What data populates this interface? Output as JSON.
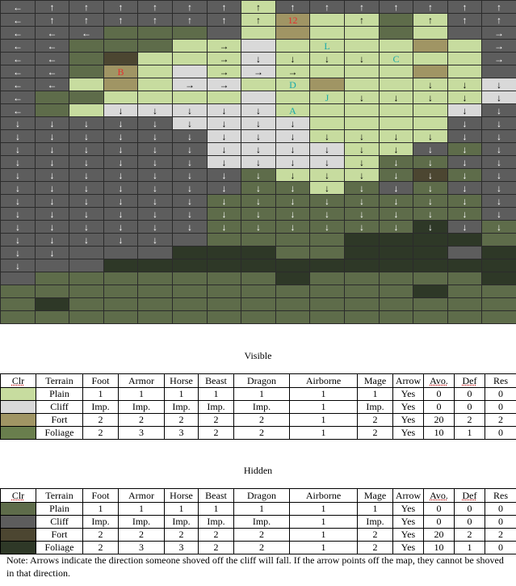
{
  "palette": {
    "P": "#c7dc9f",
    "C": "#d9d9d9",
    "F": "#a09564",
    "G": "#697e4d",
    "p": "#5e6c4a",
    "c": "#5d5d5d",
    "f": "#4c4631",
    "g": "#2e3827"
  },
  "label_colors": {
    "red": "#e53030",
    "cyan": "#18aaa9"
  },
  "map": {
    "rows": [
      "cccccccPccccccc",
      "cccccccPFPPpPcc",
      "cccpppcPFPPpPcc",
      "ccpppPPCPPPPFPc",
      "ccpfPPPCPPPPPPc",
      "ccpFPCPCPPPPFPc",
      "ccPFPCCPPFPPPPC",
      "cppPPPPCPPPPPPC",
      "cpPCCCCCPPPPPCc",
      "cccccCCCCPPPPcc",
      "ccccccCCCPPPPcc",
      "ccccccCCCCPPcpc",
      "ccccccCCCCPppcc",
      "cccccccpPPPpfpc",
      "cccccccppPpcpcc",
      "ccccccppppppppc",
      "ccccccppppppppc",
      "ccccccppppppgcp",
      "ccccccppppggggp",
      "cccccgggppgggcg",
      "cccgggggggggggg",
      "cpppppppgpppppg",
      "ppppppppppppgpp",
      "pgppppppppppppp",
      "ppppppppppppppp"
    ],
    "arrows": [
      "←↑↑↑↑↑↑↑↑↑↑↑↑↑↑",
      "←↑↑↑↑↑↑↑  ↑ ↑↑↑",
      "←←←           →↑",
      "←←    →       →",
      "←←    →↓↓↓↓↓  →",
      "←←    →→→      ↓",
      "←←   →→     ↓↓↓",
      "←        ↓↓↓↓↓↓",
      "←  ↓↓↓↓↓↓    ↓↓↓",
      "↓↓↓↓↓↓↓↓↓    ↓↓",
      "↓↓↓↓↓↓↓↓↓↓↓↓↓↓↓",
      "↓↓↓↓↓↓↓↓↓↓↓↓↓↓↓",
      "↓↓↓↓↓↓↓↓↓↓↓↓↓↓↓",
      "↓↓↓↓↓↓↓↓↓↓↓↓↓↓↓",
      "↓↓↓↓↓↓↓↓↓↓↓↓↓↓↓",
      "↓↓↓↓↓↓↓↓↓↓↓↓↓↓↓",
      "↓↓↓↓↓↓↓↓↓↓↓↓↓↓↓",
      "↓↓↓↓↓↓↓↓↓↓↓↓↓↓↓",
      "↓↓↓↓↓          ",
      "↓↓             ",
      "↓              ",
      "               ",
      "               ",
      "               ",
      "               "
    ],
    "labels": [
      {
        "row": 1,
        "col": 8,
        "text": "12",
        "color": "red"
      },
      {
        "row": 3,
        "col": 9,
        "text": "L",
        "color": "cyan"
      },
      {
        "row": 4,
        "col": 11,
        "text": "C",
        "color": "cyan"
      },
      {
        "row": 5,
        "col": 3,
        "text": "B",
        "color": "red"
      },
      {
        "row": 6,
        "col": 8,
        "text": "D",
        "color": "cyan"
      },
      {
        "row": 7,
        "col": 9,
        "text": "J",
        "color": "cyan"
      },
      {
        "row": 8,
        "col": 8,
        "text": "A",
        "color": "cyan"
      }
    ]
  },
  "visible": {
    "title": "Visible",
    "headers": [
      "Clr",
      "Terrain",
      "Foot",
      "Armor",
      "Horse",
      "Beast",
      "Dragon",
      "Airborne",
      "Mage",
      "Arrow",
      "Avo.",
      "Def",
      "Res"
    ],
    "rows": [
      {
        "swatch": "P",
        "cells": [
          "Plain",
          "1",
          "1",
          "1",
          "1",
          "1",
          "1",
          "1",
          "Yes",
          "0",
          "0",
          "0"
        ]
      },
      {
        "swatch": "C",
        "cells": [
          "Cliff",
          "Imp.",
          "Imp.",
          "Imp.",
          "Imp.",
          "Imp.",
          "1",
          "Imp.",
          "Yes",
          "0",
          "0",
          "0"
        ]
      },
      {
        "swatch": "F",
        "cells": [
          "Fort",
          "2",
          "2",
          "2",
          "2",
          "2",
          "1",
          "2",
          "Yes",
          "20",
          "2",
          "2"
        ]
      },
      {
        "swatch": "G",
        "cells": [
          "Foliage",
          "2",
          "3",
          "3",
          "2",
          "2",
          "1",
          "2",
          "Yes",
          "10",
          "1",
          "0"
        ]
      }
    ]
  },
  "hidden": {
    "title": "Hidden",
    "headers": [
      "Clr",
      "Terrain",
      "Foot",
      "Armor",
      "Horse",
      "Beast",
      "Dragon",
      "Airborne",
      "Mage",
      "Arrow",
      "Avo.",
      "Def",
      "Res"
    ],
    "rows": [
      {
        "swatch": "p",
        "cells": [
          "Plain",
          "1",
          "1",
          "1",
          "1",
          "1",
          "1",
          "1",
          "Yes",
          "0",
          "0",
          "0"
        ]
      },
      {
        "swatch": "c",
        "cells": [
          "Cliff",
          "Imp.",
          "Imp.",
          "Imp.",
          "Imp.",
          "Imp.",
          "1",
          "Imp.",
          "Yes",
          "0",
          "0",
          "0"
        ]
      },
      {
        "swatch": "f",
        "cells": [
          "Fort",
          "2",
          "2",
          "2",
          "2",
          "2",
          "1",
          "2",
          "Yes",
          "20",
          "2",
          "2"
        ]
      },
      {
        "swatch": "g",
        "cells": [
          "Foliage",
          "2",
          "3",
          "3",
          "2",
          "2",
          "1",
          "2",
          "Yes",
          "10",
          "1",
          "0"
        ]
      }
    ]
  },
  "note": "Note: Arrows indicate the direction someone shoved off the cliff will fall.  If the arrow points off the map, they cannot be shoved in that direction."
}
